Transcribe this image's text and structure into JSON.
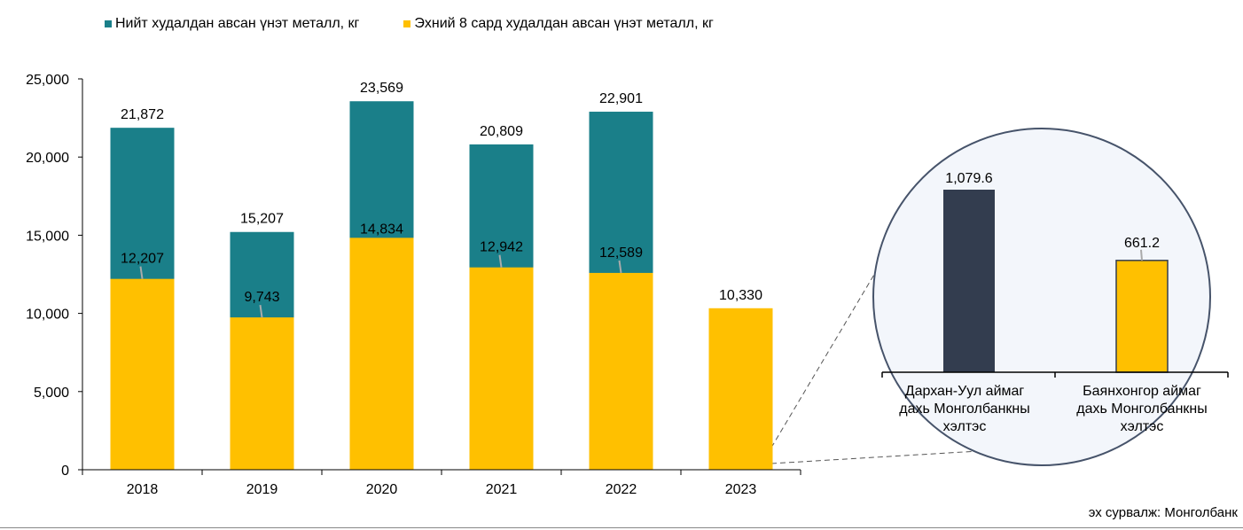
{
  "chart_data": [
    {
      "type": "bar",
      "stacking": "overlay",
      "categories": [
        "2018",
        "2019",
        "2020",
        "2021",
        "2022",
        "2023"
      ],
      "series": [
        {
          "name": "Нийт худалдан авсан үнэт металл, кг",
          "color": "#1a7f89",
          "values": [
            21872,
            15207,
            23569,
            20809,
            22901,
            null
          ],
          "labels": [
            "21,872",
            "15,207",
            "23,569",
            "20,809",
            "22,901",
            ""
          ]
        },
        {
          "name": "Эхний 8 сард худалдан авсан үнэт металл, кг",
          "color": "#ffc000",
          "values": [
            12207,
            9743,
            14834,
            12942,
            12589,
            10330
          ],
          "labels": [
            "12,207",
            "9,743",
            "14,834",
            "12,942",
            "12,589",
            "10,330"
          ]
        }
      ],
      "ylim": [
        0,
        25000
      ],
      "yticks": [
        0,
        5000,
        10000,
        15000,
        20000,
        25000
      ],
      "ytick_labels": [
        "0",
        "5,000",
        "10,000",
        "15,000",
        "20,000",
        "25,000"
      ],
      "legend_position": "top"
    },
    {
      "type": "bar",
      "categories": [
        "Дархан-Уул аймаг дахь Монголбанкны хэлтэс",
        "Баянхонгор аймаг дахь Монголбанкны хэлтэс"
      ],
      "category_lines": [
        [
          "Дархан-Уул аймаг",
          "дахь Монголбанкны",
          "хэлтэс"
        ],
        [
          "Баянхонгор аймаг",
          "дахь Монголбанкны",
          "хэлтэс"
        ]
      ],
      "values": [
        1079.6,
        661.2
      ],
      "labels": [
        "1,079.6",
        "661.2"
      ],
      "colors": [
        "#333d4f",
        "#ffc000"
      ],
      "note": "breakdown of 2023"
    }
  ],
  "legend": {
    "items": [
      {
        "label": "Нийт худалдан авсан үнэт металл, кг",
        "color": "#1a7f89"
      },
      {
        "label": "Эхний 8 сард худалдан авсан үнэт металл, кг",
        "color": "#ffc000"
      }
    ]
  },
  "source": "эх сурвалж: Монголбанк"
}
